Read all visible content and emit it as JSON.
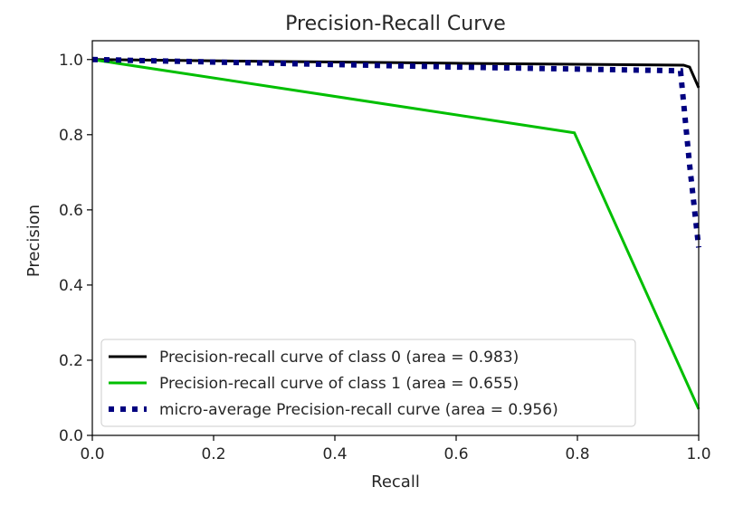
{
  "chart_data": {
    "type": "line",
    "title": "Precision-Recall Curve",
    "xlabel": "Recall",
    "ylabel": "Precision",
    "xlim": [
      0.0,
      1.0
    ],
    "ylim": [
      0.0,
      1.05
    ],
    "xticks": [
      "0.0",
      "0.2",
      "0.4",
      "0.6",
      "0.8",
      "1.0"
    ],
    "yticks": [
      "0.0",
      "0.2",
      "0.4",
      "0.6",
      "0.8",
      "1.0"
    ],
    "grid": false,
    "legend_position": "lower-left",
    "series": [
      {
        "name": "Precision-recall curve of class 0 (area = 0.983)",
        "color": "#000000",
        "style": "solid",
        "points": [
          [
            0.0,
            1.0
          ],
          [
            0.3,
            0.995
          ],
          [
            0.6,
            0.99
          ],
          [
            0.975,
            0.985
          ],
          [
            0.985,
            0.98
          ],
          [
            1.0,
            0.925
          ]
        ]
      },
      {
        "name": "Precision-recall curve of class 1 (area = 0.655)",
        "color": "#00bf00",
        "style": "solid",
        "points": [
          [
            0.0,
            1.0
          ],
          [
            0.795,
            0.805
          ],
          [
            1.0,
            0.07
          ]
        ]
      },
      {
        "name": "micro-average Precision-recall curve (area = 0.956)",
        "color": "#000080",
        "style": "dotted",
        "points": [
          [
            0.0,
            1.0
          ],
          [
            0.3,
            0.99
          ],
          [
            0.6,
            0.98
          ],
          [
            0.97,
            0.97
          ],
          [
            0.985,
            0.72
          ],
          [
            1.0,
            0.5
          ]
        ]
      }
    ]
  }
}
